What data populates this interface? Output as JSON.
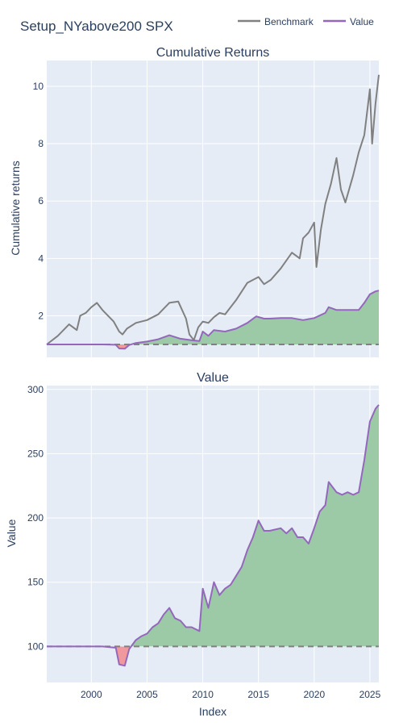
{
  "title": "Setup_NYabove200 SPX",
  "legend": {
    "items": [
      {
        "label": "Benchmark",
        "color": "#808080"
      },
      {
        "label": "Value",
        "color": "#9467bd"
      }
    ],
    "placement": "top-right"
  },
  "colors": {
    "plot_bg": "#e5ecf6",
    "grid": "#ffffff",
    "positive_fill": "#9ccaa6",
    "negative_fill": "#f0999c",
    "baseline": "#808080"
  },
  "chart_data": [
    {
      "type": "line",
      "title": "Cumulative Returns",
      "xlabel": "",
      "ylabel": "Cumulative returns",
      "xlim": [
        1996.0,
        2025.8
      ],
      "ylim": [
        0.55,
        10.9
      ],
      "yticks": [
        2,
        4,
        6,
        8,
        10
      ],
      "baseline": 1,
      "grid": true,
      "series": [
        {
          "name": "Benchmark",
          "color": "#808080",
          "x": [
            1996.0,
            1997.0,
            1998.0,
            1998.7,
            1999.0,
            1999.5,
            2000.0,
            2000.5,
            2001.0,
            2001.5,
            2002.0,
            2002.5,
            2002.8,
            2003.2,
            2004.0,
            2005.0,
            2006.0,
            2007.0,
            2007.8,
            2008.5,
            2008.8,
            2009.2,
            2009.6,
            2010.0,
            2010.5,
            2011.0,
            2011.5,
            2012.0,
            2013.0,
            2014.0,
            2015.0,
            2015.5,
            2016.1,
            2017.0,
            2018.0,
            2018.7,
            2019.0,
            2019.5,
            2020.0,
            2020.2,
            2020.6,
            2021.0,
            2021.5,
            2022.0,
            2022.4,
            2022.8,
            2023.5,
            2024.0,
            2024.5,
            2025.0,
            2025.2,
            2025.5,
            2025.8
          ],
          "y": [
            1.0,
            1.3,
            1.7,
            1.5,
            2.0,
            2.1,
            2.3,
            2.45,
            2.2,
            2.0,
            1.8,
            1.45,
            1.35,
            1.55,
            1.75,
            1.85,
            2.05,
            2.45,
            2.5,
            1.9,
            1.35,
            1.15,
            1.6,
            1.8,
            1.75,
            1.95,
            2.1,
            2.05,
            2.55,
            3.15,
            3.35,
            3.1,
            3.25,
            3.65,
            4.2,
            4.0,
            4.7,
            4.9,
            5.25,
            3.7,
            5.0,
            5.9,
            6.6,
            7.5,
            6.4,
            5.95,
            6.9,
            7.7,
            8.3,
            9.9,
            8.0,
            9.4,
            10.4
          ]
        },
        {
          "name": "Value",
          "color": "#9467bd",
          "x": [
            1996.0,
            2001.0,
            2002.2,
            2002.5,
            2003.0,
            2003.4,
            2004.0,
            2005.0,
            2006.0,
            2007.0,
            2008.0,
            2009.0,
            2009.7,
            2010.0,
            2010.5,
            2011.0,
            2012.0,
            2013.0,
            2014.0,
            2014.8,
            2015.5,
            2016.0,
            2017.0,
            2018.0,
            2019.0,
            2020.0,
            2021.0,
            2021.3,
            2022.0,
            2022.5,
            2023.0,
            2023.5,
            2024.0,
            2024.5,
            2025.0,
            2025.5,
            2025.8
          ],
          "y": [
            1.0,
            1.0,
            0.99,
            0.86,
            0.85,
            0.98,
            1.05,
            1.1,
            1.18,
            1.32,
            1.2,
            1.15,
            1.12,
            1.45,
            1.3,
            1.5,
            1.45,
            1.55,
            1.75,
            1.98,
            1.9,
            1.9,
            1.92,
            1.92,
            1.85,
            1.92,
            2.1,
            2.3,
            2.2,
            2.2,
            2.2,
            2.2,
            2.2,
            2.45,
            2.75,
            2.85,
            2.88
          ]
        }
      ]
    },
    {
      "type": "area",
      "title": "Value",
      "xlabel": "Index",
      "ylabel": "Value",
      "xlim": [
        1996.0,
        2025.8
      ],
      "ylim": [
        72,
        303
      ],
      "yticks": [
        100,
        150,
        200,
        250,
        300
      ],
      "xticks": [
        2000,
        2005,
        2010,
        2015,
        2020,
        2025
      ],
      "baseline": 100,
      "grid": true,
      "series": [
        {
          "name": "Value",
          "color": "#9467bd",
          "x": [
            1996.0,
            2001.0,
            2002.2,
            2002.5,
            2003.0,
            2003.4,
            2004.0,
            2004.5,
            2005.0,
            2005.5,
            2006.0,
            2006.5,
            2007.0,
            2007.5,
            2008.0,
            2008.5,
            2009.0,
            2009.7,
            2010.0,
            2010.5,
            2011.0,
            2011.5,
            2012.0,
            2012.5,
            2013.0,
            2013.5,
            2014.0,
            2014.5,
            2015.0,
            2015.5,
            2016.0,
            2017.0,
            2017.5,
            2018.0,
            2018.5,
            2019.0,
            2019.5,
            2020.0,
            2020.5,
            2021.0,
            2021.3,
            2022.0,
            2022.5,
            2023.0,
            2023.5,
            2024.0,
            2024.5,
            2025.0,
            2025.5,
            2025.8
          ],
          "y": [
            100,
            100,
            99,
            86,
            85,
            98,
            105,
            108,
            110,
            115,
            118,
            125,
            130,
            122,
            120,
            115,
            115,
            112,
            145,
            130,
            150,
            140,
            145,
            148,
            155,
            162,
            175,
            185,
            198,
            190,
            190,
            192,
            188,
            192,
            185,
            185,
            180,
            192,
            205,
            210,
            228,
            220,
            218,
            220,
            218,
            220,
            245,
            275,
            285,
            288
          ]
        }
      ]
    }
  ]
}
